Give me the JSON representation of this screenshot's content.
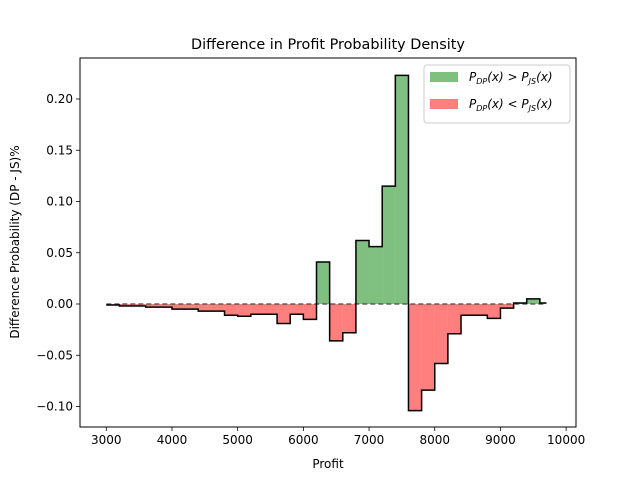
{
  "chart_data": {
    "type": "area",
    "title": "Difference in Profit Probability Density",
    "xlabel": "Profit",
    "ylabel": "Difference Probability (DP - JS)%",
    "xlim": [
      2600,
      10150
    ],
    "ylim": [
      -0.12,
      0.24
    ],
    "xticks": [
      3000,
      4000,
      5000,
      6000,
      7000,
      8000,
      9000,
      10000
    ],
    "yticks": [
      -0.1,
      -0.05,
      0.0,
      0.05,
      0.1,
      0.15,
      0.2
    ],
    "ytick_labels": [
      "−0.10",
      "−0.05",
      "0.00",
      "0.05",
      "0.10",
      "0.15",
      "0.20"
    ],
    "grid": false,
    "legend_position": "top-right",
    "bin_edges": [
      3000,
      3200,
      3400,
      3600,
      3800,
      4000,
      4200,
      4400,
      4600,
      4800,
      5000,
      5200,
      5400,
      5600,
      5800,
      6000,
      6200,
      6400,
      6600,
      6800,
      7000,
      7200,
      7400,
      7600,
      7800,
      8000,
      8200,
      8400,
      8600,
      8800,
      9000,
      9200,
      9400,
      9600,
      9700
    ],
    "values": [
      -0.001,
      -0.002,
      -0.002,
      -0.003,
      -0.003,
      -0.005,
      -0.005,
      -0.007,
      -0.007,
      -0.011,
      -0.012,
      -0.01,
      -0.01,
      -0.019,
      -0.01,
      -0.015,
      0.041,
      -0.036,
      -0.028,
      0.062,
      0.056,
      0.115,
      0.223,
      -0.104,
      -0.084,
      -0.058,
      -0.029,
      -0.011,
      -0.011,
      -0.014,
      -0.004,
      0.001,
      0.005,
      0.001
    ],
    "series": [
      {
        "name": "P_DP(x) > P_JS(x)",
        "color": "#008000",
        "alpha": 0.5
      },
      {
        "name": "P_DP(x) < P_JS(x)",
        "color": "#ff0000",
        "alpha": 0.5
      }
    ],
    "legend": [
      {
        "main": "P",
        "sub1": "DP",
        "mid": "(x) > P",
        "sub2": "JS",
        "end": "(x)"
      },
      {
        "main": "P",
        "sub1": "DP",
        "mid": "(x) < P",
        "sub2": "JS",
        "end": "(x)"
      }
    ],
    "zero_line": {
      "style": "dashed",
      "color": "#444444"
    },
    "step_line_color": "#000000"
  }
}
